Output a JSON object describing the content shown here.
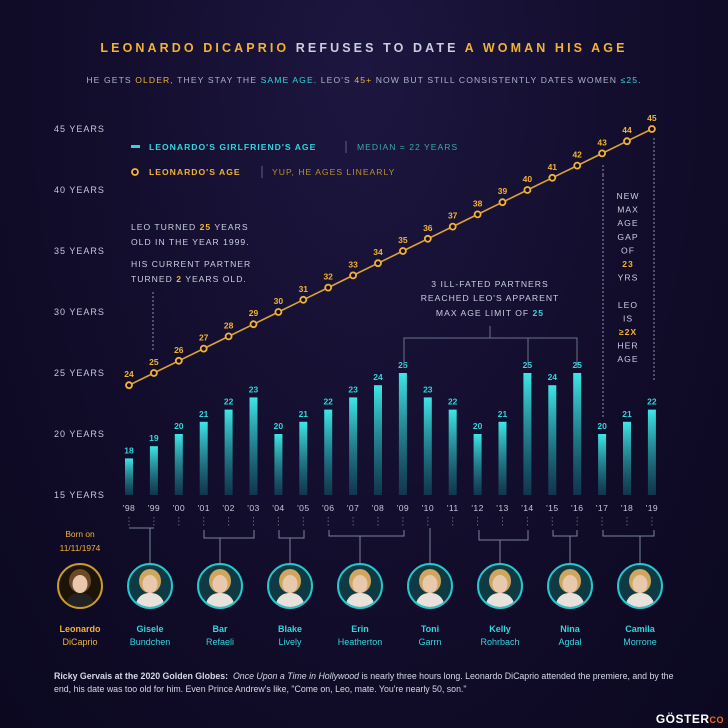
{
  "title": {
    "part1": "LEONARDO DICAPRIO",
    "part2": " REFUSES TO DATE ",
    "part3": "A WOMAN HIS AGE"
  },
  "subtitle": {
    "s1": "HE GETS ",
    "s2": "OLDER",
    "s3": ", THEY STAY THE ",
    "s4": "SAME AGE",
    "s5": ". LEO'S ",
    "s6": "45+",
    "s7": " NOW BUT STILL CONSISTENTLY DATES WOMEN ",
    "s8": "≤25",
    "s9": "."
  },
  "colors": {
    "leo": "#f2b233",
    "girlfriend": "#2fd6dc",
    "text": "#c9cfe0",
    "axis": "#8a93ad"
  },
  "chart_data": {
    "type": "bar",
    "categories": [
      "'98",
      "'99",
      "'00",
      "'01",
      "'02",
      "'03",
      "'04",
      "'05",
      "'06",
      "'07",
      "'08",
      "'09",
      "'10",
      "'11",
      "'12",
      "'13",
      "'14",
      "'15",
      "'16",
      "'17",
      "'18",
      "'19"
    ],
    "y_tick_labels": [
      "15 YEARS",
      "20 YEARS",
      "25 YEARS",
      "30 YEARS",
      "35 YEARS",
      "40 YEARS",
      "45 YEARS"
    ],
    "ylim": [
      15,
      45
    ],
    "series": [
      {
        "name": "LEONARDO'S GIRLFRIEND'S AGE",
        "kind": "bar",
        "values": [
          18,
          19,
          20,
          21,
          22,
          23,
          20,
          21,
          22,
          23,
          24,
          25,
          23,
          22,
          20,
          21,
          25,
          24,
          25,
          20,
          21,
          22
        ]
      },
      {
        "name": "LEONARDO'S AGE",
        "kind": "line",
        "values": [
          24,
          25,
          26,
          27,
          28,
          29,
          30,
          31,
          32,
          33,
          34,
          35,
          36,
          37,
          38,
          39,
          40,
          41,
          42,
          43,
          44,
          45
        ]
      }
    ],
    "legend": {
      "position": "top-left",
      "items": [
        {
          "label": "LEONARDO'S GIRLFRIEND'S AGE",
          "note": "MEDIAN = 22 YEARS"
        },
        {
          "label": "LEONARDO'S AGE",
          "note": "YUP, HE AGES LINEARLY"
        }
      ]
    },
    "annotations": {
      "leo_1999": {
        "lines": [
          [
            "LEO TURNED ",
            "25",
            " YEARS"
          ],
          [
            "OLD IN THE YEAR 1999."
          ],
          [
            "HIS CURRENT PARTNER"
          ],
          [
            "TURNED ",
            "2",
            " YEARS OLD."
          ]
        ]
      },
      "max_limit": {
        "lines": [
          [
            "3 ILL-FATED PARTNERS"
          ],
          [
            "REACHED LEO'S APPARENT"
          ],
          [
            "MAX AGE LIMIT OF ",
            "25"
          ]
        ]
      },
      "age_gap": {
        "lines": [
          "NEW",
          "MAX",
          "AGE",
          "GAP",
          "OF",
          "23",
          "YRS",
          "",
          "LEO",
          "IS",
          "≥2X",
          "HER",
          "AGE"
        ]
      }
    },
    "born_label": [
      "Born on",
      "11/11/1974"
    ]
  },
  "people": [
    {
      "first": "Leonardo",
      "last": "DiCaprio",
      "leo": true
    },
    {
      "first": "Gisele",
      "last": "Bundchen"
    },
    {
      "first": "Bar",
      "last": "Refaeli"
    },
    {
      "first": "Blake",
      "last": "Lively"
    },
    {
      "first": "Erin",
      "last": "Heatherton"
    },
    {
      "first": "Toni",
      "last": "Garrn"
    },
    {
      "first": "Kelly",
      "last": "Rohrbach"
    },
    {
      "first": "Nina",
      "last": "Agdal"
    },
    {
      "first": "Camila",
      "last": "Morrone"
    }
  ],
  "quote": {
    "speaker": "Ricky Gervais at the 2020 Golden Globes:",
    "film": "Once Upon a Time in Hollywood",
    "body": " is nearly three hours long. Leonardo DiCaprio attended the premiere, and by the end, his date was too old for him.  Even Prince Andrew's like, \"Come on, Leo, mate. You're nearly 50, son.\""
  },
  "watermark": {
    "main": "GÖSTER",
    "suffix": "CO"
  }
}
